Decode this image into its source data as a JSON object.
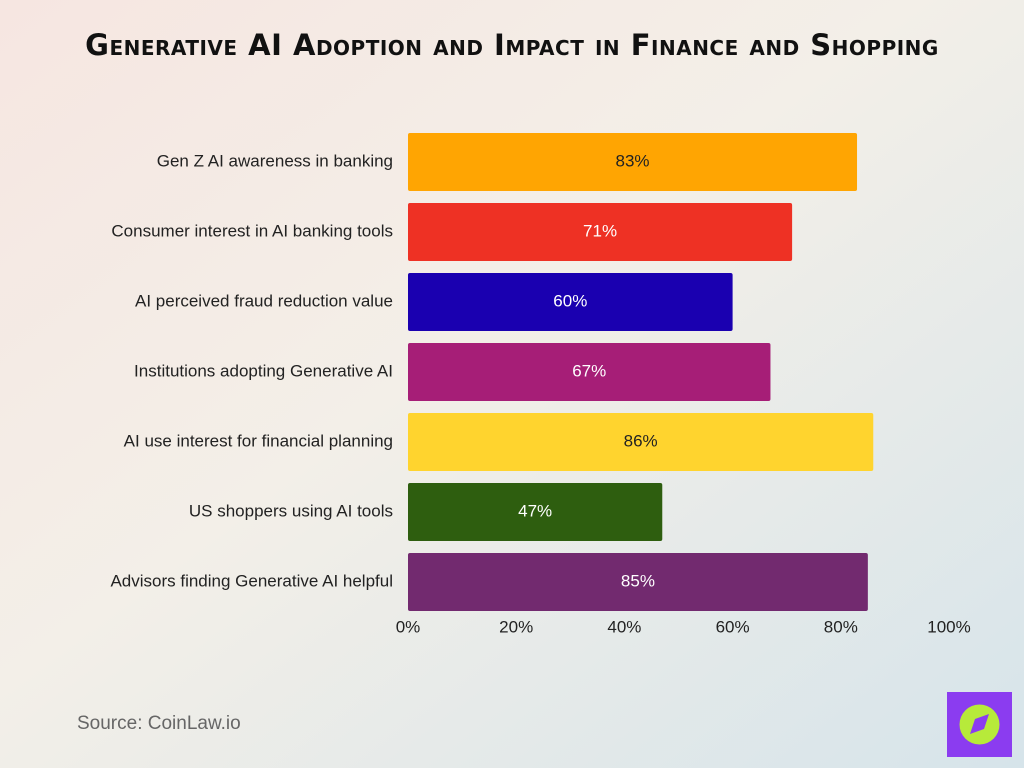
{
  "chart_data": {
    "type": "barh",
    "title": "Generative AI Adoption and Impact in Finance and Shopping",
    "categories": [
      "Gen Z AI awareness in banking",
      "Consumer interest in AI banking tools",
      "AI perceived fraud reduction value",
      "Institutions adopting Generative AI",
      "AI use interest for financial planning",
      "US shoppers using AI tools",
      "Advisors finding Generative AI helpful"
    ],
    "values": [
      83,
      71,
      60,
      67,
      86,
      47,
      85
    ],
    "value_labels": [
      "83%",
      "71%",
      "60%",
      "67%",
      "86%",
      "47%",
      "85%"
    ],
    "colors": [
      "#FFA502",
      "#EE3124",
      "#1A00B0",
      "#A61E77",
      "#FFD42E",
      "#2E5E0F",
      "#722A6F"
    ],
    "xlim": [
      0,
      100
    ],
    "xticks": [
      {
        "value": 0,
        "label": "0%"
      },
      {
        "value": 20,
        "label": "20%"
      },
      {
        "value": 40,
        "label": "40%"
      },
      {
        "value": 60,
        "label": "60%"
      },
      {
        "value": 80,
        "label": "80%"
      },
      {
        "value": 100,
        "label": "100%"
      }
    ],
    "grid": false,
    "source": "Source: CoinLaw.io"
  }
}
